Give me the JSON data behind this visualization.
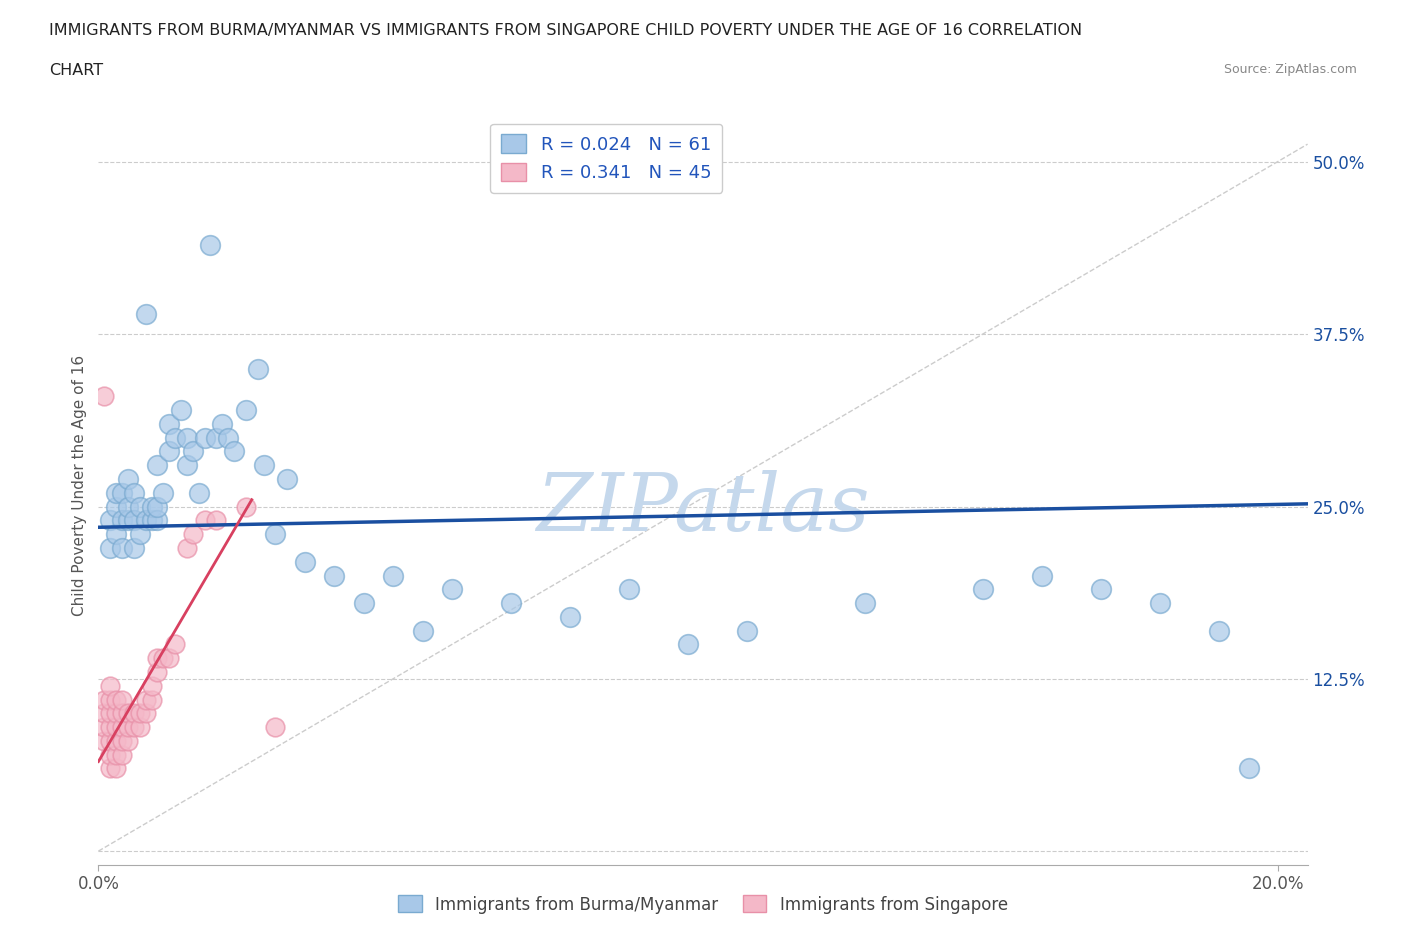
{
  "title_line1": "IMMIGRANTS FROM BURMA/MYANMAR VS IMMIGRANTS FROM SINGAPORE CHILD POVERTY UNDER THE AGE OF 16 CORRELATION",
  "title_line2": "CHART",
  "source": "Source: ZipAtlas.com",
  "ylabel": "Child Poverty Under the Age of 16",
  "ytick_values": [
    0.0,
    0.125,
    0.25,
    0.375,
    0.5
  ],
  "ytick_labels": [
    "",
    "12.5%",
    "25.0%",
    "37.5%",
    "50.0%"
  ],
  "xlim": [
    0.0,
    0.205
  ],
  "ylim": [
    -0.01,
    0.54
  ],
  "blue_R": 0.024,
  "blue_N": 61,
  "pink_R": 0.341,
  "pink_N": 45,
  "blue_color": "#a8c8e8",
  "pink_color": "#f4b8c8",
  "blue_edge_color": "#7aaad0",
  "pink_edge_color": "#e890a8",
  "blue_line_color": "#1a4fa0",
  "pink_line_color": "#d84060",
  "ref_line_color": "#cccccc",
  "grid_color": "#cccccc",
  "legend_text_color": "#2255bb",
  "title_color": "#222222",
  "watermark_color": "#c5d8ec",
  "blue_x": [
    0.002,
    0.002,
    0.003,
    0.003,
    0.003,
    0.004,
    0.004,
    0.004,
    0.005,
    0.005,
    0.005,
    0.006,
    0.006,
    0.006,
    0.007,
    0.007,
    0.008,
    0.008,
    0.009,
    0.009,
    0.01,
    0.01,
    0.01,
    0.011,
    0.012,
    0.012,
    0.013,
    0.014,
    0.015,
    0.015,
    0.016,
    0.017,
    0.018,
    0.019,
    0.02,
    0.021,
    0.022,
    0.023,
    0.025,
    0.027,
    0.028,
    0.03,
    0.032,
    0.035,
    0.04,
    0.045,
    0.05,
    0.055,
    0.06,
    0.07,
    0.08,
    0.09,
    0.1,
    0.11,
    0.13,
    0.15,
    0.16,
    0.17,
    0.18,
    0.19,
    0.195
  ],
  "blue_y": [
    0.22,
    0.24,
    0.23,
    0.25,
    0.26,
    0.22,
    0.24,
    0.26,
    0.24,
    0.25,
    0.27,
    0.22,
    0.24,
    0.26,
    0.23,
    0.25,
    0.24,
    0.39,
    0.24,
    0.25,
    0.24,
    0.25,
    0.28,
    0.26,
    0.29,
    0.31,
    0.3,
    0.32,
    0.28,
    0.3,
    0.29,
    0.26,
    0.3,
    0.44,
    0.3,
    0.31,
    0.3,
    0.29,
    0.32,
    0.35,
    0.28,
    0.23,
    0.27,
    0.21,
    0.2,
    0.18,
    0.2,
    0.16,
    0.19,
    0.18,
    0.17,
    0.19,
    0.15,
    0.16,
    0.18,
    0.19,
    0.2,
    0.19,
    0.18,
    0.16,
    0.06
  ],
  "pink_x": [
    0.001,
    0.001,
    0.001,
    0.001,
    0.001,
    0.002,
    0.002,
    0.002,
    0.002,
    0.002,
    0.002,
    0.002,
    0.003,
    0.003,
    0.003,
    0.003,
    0.003,
    0.003,
    0.004,
    0.004,
    0.004,
    0.004,
    0.004,
    0.005,
    0.005,
    0.005,
    0.006,
    0.006,
    0.007,
    0.007,
    0.008,
    0.008,
    0.009,
    0.009,
    0.01,
    0.01,
    0.011,
    0.012,
    0.013,
    0.015,
    0.016,
    0.018,
    0.02,
    0.025,
    0.03
  ],
  "pink_y": [
    0.08,
    0.09,
    0.1,
    0.11,
    0.33,
    0.06,
    0.07,
    0.08,
    0.09,
    0.1,
    0.11,
    0.12,
    0.06,
    0.07,
    0.08,
    0.09,
    0.1,
    0.11,
    0.07,
    0.08,
    0.09,
    0.1,
    0.11,
    0.08,
    0.09,
    0.1,
    0.09,
    0.1,
    0.09,
    0.1,
    0.1,
    0.11,
    0.11,
    0.12,
    0.13,
    0.14,
    0.14,
    0.14,
    0.15,
    0.22,
    0.23,
    0.24,
    0.24,
    0.25,
    0.09
  ],
  "blue_trend_x": [
    0.0,
    0.205
  ],
  "blue_trend_y": [
    0.235,
    0.252
  ],
  "pink_trend_x": [
    0.0,
    0.026
  ],
  "pink_trend_y": [
    0.065,
    0.255
  ],
  "ref_line_x": [
    0.0,
    0.205
  ],
  "ref_line_y": [
    0.0,
    0.513
  ]
}
